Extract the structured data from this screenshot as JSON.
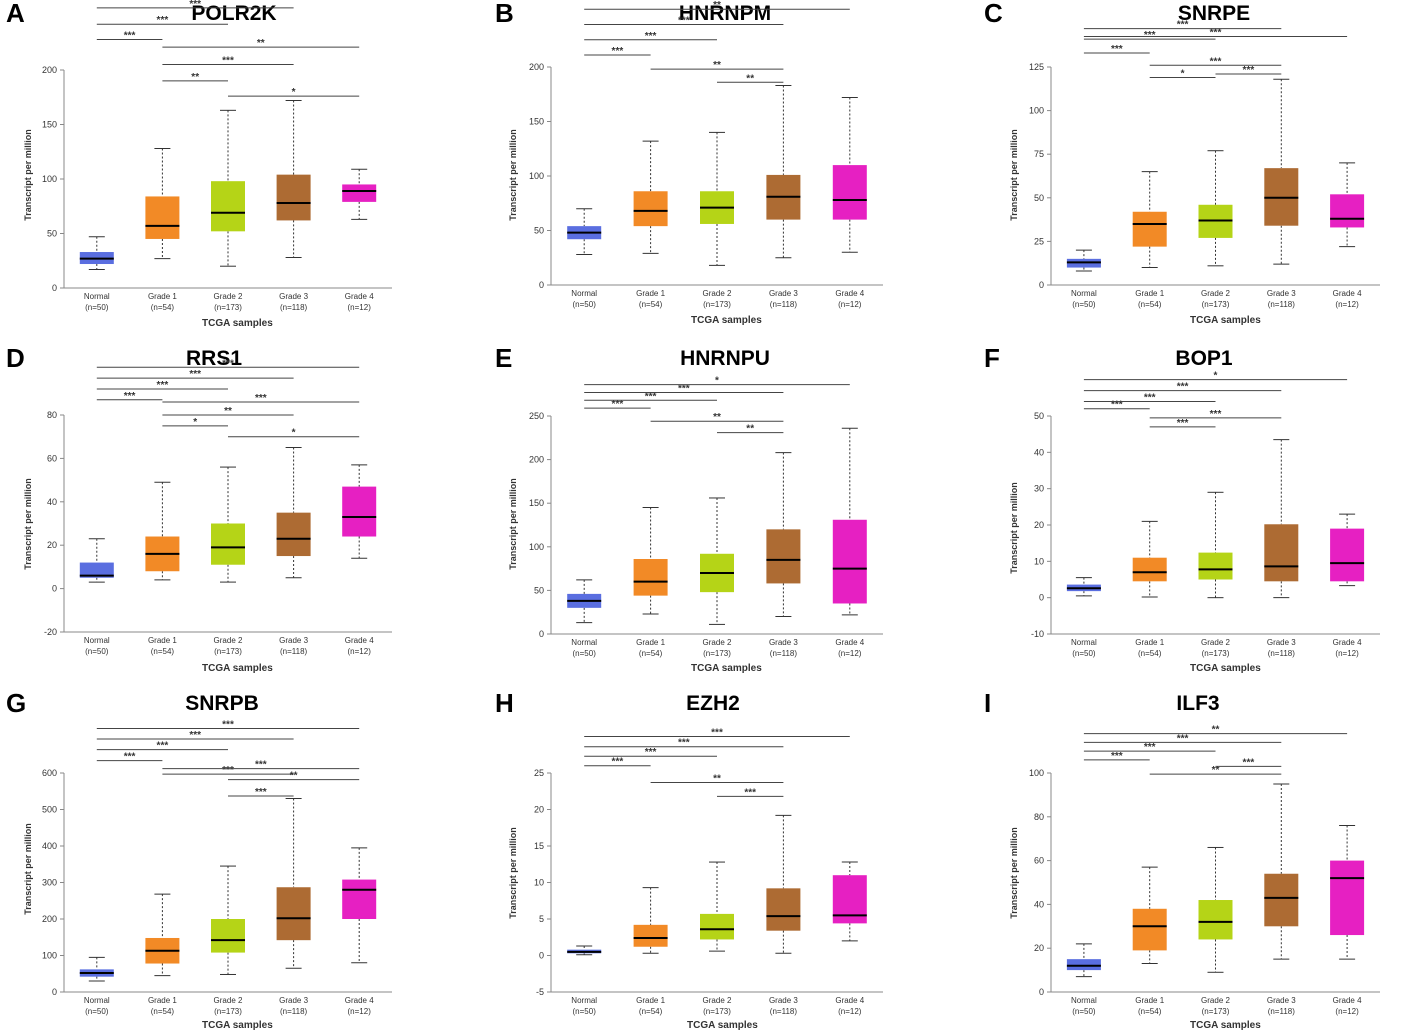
{
  "ylabel": "Transcript per million",
  "xlabel": "TCGA samples",
  "groups": [
    {
      "name": "Normal",
      "n": "(n=50)",
      "color": "#5a6ee0"
    },
    {
      "name": "Grade 1",
      "n": "(n=54)",
      "color": "#f28a26"
    },
    {
      "name": "Grade 2",
      "n": "(n=173)",
      "color": "#b5d417"
    },
    {
      "name": "Grade 3",
      "n": "(n=118)",
      "color": "#ad6b33"
    },
    {
      "name": "Grade 4",
      "n": "(n=12)",
      "color": "#e620c2"
    }
  ],
  "chart_data": [
    {
      "letter": "A",
      "gene": "POLR2K",
      "type": "box",
      "ylim": [
        0,
        200
      ],
      "yticks": [
        0,
        50,
        100,
        150,
        200
      ],
      "boxes": [
        [
          17,
          22,
          27,
          33,
          47
        ],
        [
          27,
          45,
          57,
          84,
          128
        ],
        [
          20,
          52,
          69,
          98,
          163
        ],
        [
          28,
          62,
          78,
          104,
          172
        ],
        [
          63,
          79,
          89,
          95,
          109
        ]
      ],
      "sig": [
        {
          "from": 0,
          "to": 1,
          "label": "***",
          "y": 228
        },
        {
          "from": 0,
          "to": 2,
          "label": "***",
          "y": 242
        },
        {
          "from": 0,
          "to": 3,
          "label": "***",
          "y": 257
        },
        {
          "from": 0,
          "to": 4,
          "label": "***",
          "y": 271
        },
        {
          "from": 1,
          "to": 2,
          "label": "**",
          "y": 190
        },
        {
          "from": 1,
          "to": 3,
          "label": "***",
          "y": 205
        },
        {
          "from": 1,
          "to": 4,
          "label": "**",
          "y": 221
        },
        {
          "from": 2,
          "to": 4,
          "label": "*",
          "y": 176
        }
      ]
    },
    {
      "letter": "B",
      "gene": "HNRNPM",
      "type": "box",
      "ylim": [
        0,
        200
      ],
      "yticks": [
        0,
        50,
        100,
        150,
        200
      ],
      "boxes": [
        [
          28,
          42,
          48,
          54,
          70
        ],
        [
          29,
          54,
          68,
          86,
          132
        ],
        [
          18,
          56,
          71,
          86,
          140
        ],
        [
          25,
          60,
          81,
          101,
          183
        ],
        [
          30,
          60,
          78,
          110,
          172
        ]
      ],
      "sig": [
        {
          "from": 0,
          "to": 1,
          "label": "***",
          "y": 211
        },
        {
          "from": 0,
          "to": 2,
          "label": "***",
          "y": 225
        },
        {
          "from": 0,
          "to": 3,
          "label": "***",
          "y": 239
        },
        {
          "from": 0,
          "to": 4,
          "label": "**",
          "y": 253
        },
        {
          "from": 1,
          "to": 3,
          "label": "**",
          "y": 198
        },
        {
          "from": 2,
          "to": 3,
          "label": "**",
          "y": 186
        }
      ]
    },
    {
      "letter": "C",
      "gene": "SNRPE",
      "type": "box",
      "ylim": [
        0,
        125
      ],
      "yticks": [
        0,
        25,
        50,
        75,
        100,
        125
      ],
      "boxes": [
        [
          8,
          10,
          13,
          15,
          20
        ],
        [
          10,
          22,
          35,
          42,
          65
        ],
        [
          11,
          27,
          37,
          46,
          77
        ],
        [
          12,
          34,
          50,
          67,
          118
        ],
        [
          22,
          33,
          38,
          52,
          70
        ]
      ],
      "sig": [
        {
          "from": 0,
          "to": 1,
          "label": "***",
          "y": 133
        },
        {
          "from": 0,
          "to": 2,
          "label": "***",
          "y": 141
        },
        {
          "from": 0,
          "to": 3,
          "label": "***",
          "y": 147
        },
        {
          "from": 0,
          "to": 4,
          "label": "***",
          "y": 142.5
        },
        {
          "from": 1,
          "to": 2,
          "label": "*",
          "y": 119
        },
        {
          "from": 1,
          "to": 3,
          "label": "***",
          "y": 126
        },
        {
          "from": 2,
          "to": 3,
          "label": "***",
          "y": 121
        }
      ]
    },
    {
      "letter": "D",
      "gene": "RRS1",
      "type": "box",
      "ylim": [
        -20,
        80
      ],
      "yticks": [
        -20,
        0,
        20,
        40,
        60,
        80
      ],
      "boxes": [
        [
          3,
          5,
          6,
          12,
          23
        ],
        [
          4,
          8,
          16,
          24,
          49
        ],
        [
          3,
          11,
          19,
          30,
          56
        ],
        [
          5,
          15,
          23,
          35,
          65
        ],
        [
          14,
          24,
          33,
          47,
          57
        ]
      ],
      "sig": [
        {
          "from": 0,
          "to": 1,
          "label": "***",
          "y": 87
        },
        {
          "from": 0,
          "to": 2,
          "label": "***",
          "y": 92
        },
        {
          "from": 0,
          "to": 3,
          "label": "***",
          "y": 97
        },
        {
          "from": 0,
          "to": 4,
          "label": "***",
          "y": 102
        },
        {
          "from": 1,
          "to": 2,
          "label": "*",
          "y": 75
        },
        {
          "from": 1,
          "to": 3,
          "label": "**",
          "y": 80
        },
        {
          "from": 1,
          "to": 4,
          "label": "***",
          "y": 86
        },
        {
          "from": 2,
          "to": 4,
          "label": "*",
          "y": 70
        }
      ]
    },
    {
      "letter": "E",
      "gene": "HNRNPU",
      "type": "box",
      "ylim": [
        0,
        250
      ],
      "yticks": [
        0,
        50,
        100,
        150,
        200,
        250
      ],
      "boxes": [
        [
          13,
          30,
          38,
          46,
          62
        ],
        [
          23,
          44,
          60,
          86,
          145
        ],
        [
          11,
          48,
          70,
          92,
          156
        ],
        [
          20,
          58,
          85,
          120,
          208
        ],
        [
          22,
          35,
          75,
          131,
          236
        ]
      ],
      "sig": [
        {
          "from": 0,
          "to": 1,
          "label": "***",
          "y": 259
        },
        {
          "from": 0,
          "to": 2,
          "label": "***",
          "y": 268
        },
        {
          "from": 0,
          "to": 3,
          "label": "***",
          "y": 277
        },
        {
          "from": 0,
          "to": 4,
          "label": "*",
          "y": 286
        },
        {
          "from": 1,
          "to": 3,
          "label": "**",
          "y": 244
        },
        {
          "from": 2,
          "to": 3,
          "label": "**",
          "y": 231
        }
      ]
    },
    {
      "letter": "F",
      "gene": "BOP1",
      "type": "box",
      "ylim": [
        -10,
        50
      ],
      "yticks": [
        -10,
        0,
        10,
        20,
        30,
        40,
        50
      ],
      "boxes": [
        [
          0.5,
          1.8,
          2.6,
          3.6,
          5.5
        ],
        [
          0.2,
          4.5,
          7,
          11,
          21
        ],
        [
          0,
          5,
          7.8,
          12.4,
          29
        ],
        [
          0,
          4.5,
          8.6,
          20.2,
          43.5
        ],
        [
          3.3,
          4.5,
          9.5,
          19,
          23
        ]
      ],
      "sig": [
        {
          "from": 0,
          "to": 1,
          "label": "***",
          "y": 52
        },
        {
          "from": 0,
          "to": 2,
          "label": "***",
          "y": 54
        },
        {
          "from": 0,
          "to": 3,
          "label": "***",
          "y": 57
        },
        {
          "from": 0,
          "to": 4,
          "label": "*",
          "y": 60
        },
        {
          "from": 1,
          "to": 2,
          "label": "***",
          "y": 47
        },
        {
          "from": 1,
          "to": 3,
          "label": "***",
          "y": 49.5
        }
      ]
    },
    {
      "letter": "G",
      "gene": "SNRPB",
      "type": "box",
      "ylim": [
        0,
        600
      ],
      "yticks": [
        0,
        100,
        200,
        300,
        400,
        500,
        600
      ],
      "boxes": [
        [
          30,
          42,
          52,
          62,
          95
        ],
        [
          45,
          78,
          113,
          148,
          268
        ],
        [
          48,
          108,
          142,
          200,
          345
        ],
        [
          65,
          142,
          202,
          287,
          530
        ],
        [
          80,
          200,
          280,
          308,
          395
        ]
      ],
      "sig": [
        {
          "from": 0,
          "to": 1,
          "label": "***",
          "y": 634
        },
        {
          "from": 0,
          "to": 2,
          "label": "***",
          "y": 664
        },
        {
          "from": 0,
          "to": 3,
          "label": "***",
          "y": 693
        },
        {
          "from": 0,
          "to": 4,
          "label": "***",
          "y": 722
        },
        {
          "from": 1,
          "to": 3,
          "label": "***",
          "y": 597
        },
        {
          "from": 1,
          "to": 4,
          "label": "***",
          "y": 612
        },
        {
          "from": 2,
          "to": 4,
          "label": "**",
          "y": 582
        },
        {
          "from": 2,
          "to": 3,
          "label": "***",
          "y": 537
        }
      ]
    },
    {
      "letter": "H",
      "gene": "EZH2",
      "type": "box",
      "ylim": [
        -5,
        25
      ],
      "yticks": [
        -5,
        0,
        5,
        10,
        15,
        20,
        25
      ],
      "boxes": [
        [
          0.1,
          0.3,
          0.5,
          0.8,
          1.3
        ],
        [
          0.3,
          1.2,
          2.4,
          4.2,
          9.3
        ],
        [
          0.6,
          2.2,
          3.6,
          5.7,
          12.8
        ],
        [
          0.3,
          3.4,
          5.4,
          9.2,
          19.2
        ],
        [
          2,
          4.4,
          5.5,
          11,
          12.8
        ]
      ],
      "sig": [
        {
          "from": 0,
          "to": 1,
          "label": "***",
          "y": 26
        },
        {
          "from": 0,
          "to": 2,
          "label": "***",
          "y": 27.3
        },
        {
          "from": 0,
          "to": 3,
          "label": "***",
          "y": 28.6
        },
        {
          "from": 0,
          "to": 4,
          "label": "***",
          "y": 30
        },
        {
          "from": 1,
          "to": 3,
          "label": "**",
          "y": 23.7
        },
        {
          "from": 2,
          "to": 3,
          "label": "***",
          "y": 21.8
        }
      ]
    },
    {
      "letter": "I",
      "gene": "ILF3",
      "type": "box",
      "ylim": [
        0,
        100
      ],
      "yticks": [
        0,
        20,
        40,
        60,
        80,
        100
      ],
      "boxes": [
        [
          7,
          10,
          12,
          15,
          22
        ],
        [
          13,
          19,
          30,
          38,
          57
        ],
        [
          9,
          24,
          32,
          42,
          66
        ],
        [
          15,
          30,
          43,
          54,
          95
        ],
        [
          15,
          26,
          52,
          60,
          76
        ]
      ],
      "sig": [
        {
          "from": 0,
          "to": 1,
          "label": "***",
          "y": 106
        },
        {
          "from": 0,
          "to": 2,
          "label": "***",
          "y": 110
        },
        {
          "from": 0,
          "to": 3,
          "label": "***",
          "y": 114
        },
        {
          "from": 0,
          "to": 4,
          "label": "**",
          "y": 118
        },
        {
          "from": 1,
          "to": 3,
          "label": "**",
          "y": 99.5
        },
        {
          "from": 2,
          "to": 3,
          "label": "***",
          "y": 103
        }
      ]
    }
  ]
}
